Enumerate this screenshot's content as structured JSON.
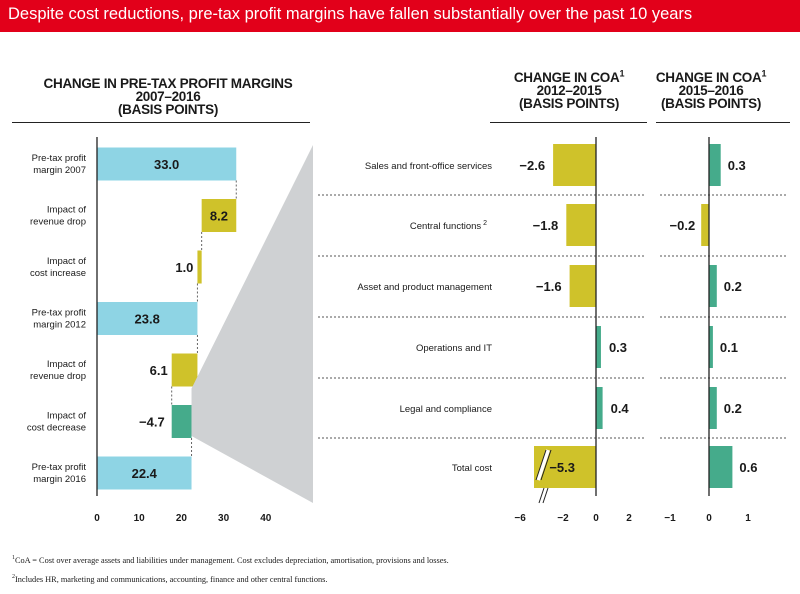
{
  "banner": {
    "title": "Despite cost reductions, pre-tax profit margins have fallen substantially over the past 10 years"
  },
  "colors": {
    "banner": "#e2001a",
    "margin": "#8ed4e4",
    "increase": "#cfc22a",
    "decrease": "#45ab8b",
    "connector": "#cfd1d3"
  },
  "panels": {
    "left": {
      "title_line1": "CHANGE IN PRE-TAX PROFIT MARGINS",
      "title_line2": "2007–2016",
      "title_line3": "(BASIS POINTS)"
    },
    "mid": {
      "title_line1": "CHANGE IN COA",
      "title_sup": "1",
      "title_line2": "2012–2015",
      "title_line3": "(BASIS POINTS)"
    },
    "right": {
      "title_line1": "CHANGE IN COA",
      "title_sup": "1",
      "title_line2": "2015–2016",
      "title_line3": "(BASIS POINTS)"
    }
  },
  "footnotes": {
    "note1_mark": "1",
    "note1": "CoA = Cost over average assets and liabilities under management. Cost excludes depreciation, amortisation, provisions and losses.",
    "note2_mark": "2",
    "note2": "Includes HR, marketing and communications, accounting, finance and other central functions."
  },
  "chart_data": [
    {
      "type": "bar",
      "subtype": "waterfall",
      "title": "CHANGE IN PRE-TAX PROFIT MARGINS 2007–2016 (BASIS POINTS)",
      "xlim": [
        0,
        40
      ],
      "xticks": [
        "0",
        "10",
        "20",
        "30",
        "40"
      ],
      "grid": false,
      "steps": [
        {
          "label": [
            "Pre-tax profit",
            "margin 2007"
          ],
          "kind": "total",
          "value": 33.0,
          "start": 0,
          "end": 33.0,
          "value_label": "33.0"
        },
        {
          "label": [
            "Impact of",
            "revenue drop"
          ],
          "kind": "change",
          "value": 8.2,
          "start": 33.0,
          "end": 24.8,
          "value_label": "8.2"
        },
        {
          "label": [
            "Impact of",
            "cost increase"
          ],
          "kind": "change",
          "value": 1.0,
          "start": 24.8,
          "end": 23.8,
          "value_label": "1.0"
        },
        {
          "label": [
            "Pre-tax profit",
            "margin 2012"
          ],
          "kind": "total",
          "value": 23.8,
          "start": 0,
          "end": 23.8,
          "value_label": "23.8"
        },
        {
          "label": [
            "Impact of",
            "revenue drop"
          ],
          "kind": "change",
          "value": 6.1,
          "start": 23.8,
          "end": 17.7,
          "value_label": "6.1"
        },
        {
          "label": [
            "Impact of",
            "cost decrease"
          ],
          "kind": "change",
          "value": -4.7,
          "start": 17.7,
          "end": 22.4,
          "value_label": "−4.7"
        },
        {
          "label": [
            "Pre-tax profit",
            "margin 2016"
          ],
          "kind": "total",
          "value": 22.4,
          "start": 0,
          "end": 22.4,
          "value_label": "22.4"
        }
      ]
    },
    {
      "type": "bar",
      "orientation": "horizontal",
      "title": "CHANGE IN COA 2012–2015 (BASIS POINTS)",
      "categories": [
        "Sales and front-office services",
        "Central functions",
        "Asset and product management",
        "Operations and IT",
        "Legal and compliance",
        "Total cost"
      ],
      "category_sup": [
        "",
        "2",
        "",
        "",
        "",
        ""
      ],
      "values": [
        -2.6,
        -1.8,
        -1.6,
        0.3,
        0.4,
        -5.3
      ],
      "value_labels": [
        "−2.6",
        "−1.8",
        "−1.6",
        "0.3",
        "0.4",
        "−5.3"
      ],
      "xlim": [
        -6,
        2
      ],
      "xticks": [
        "−6",
        "−2",
        "0",
        "2"
      ],
      "axis_break": true,
      "grid": false
    },
    {
      "type": "bar",
      "orientation": "horizontal",
      "title": "CHANGE IN COA 2015–2016 (BASIS POINTS)",
      "categories": [
        "Sales and front-office services",
        "Central functions",
        "Asset and product management",
        "Operations and IT",
        "Legal and compliance",
        "Total cost"
      ],
      "values": [
        0.3,
        -0.2,
        0.2,
        0.1,
        0.2,
        0.6
      ],
      "value_labels": [
        "0.3",
        "−0.2",
        "0.2",
        "0.1",
        "0.2",
        "0.6"
      ],
      "xlim": [
        -1,
        1
      ],
      "xticks": [
        "−1",
        "0",
        "1"
      ],
      "grid": false
    }
  ]
}
